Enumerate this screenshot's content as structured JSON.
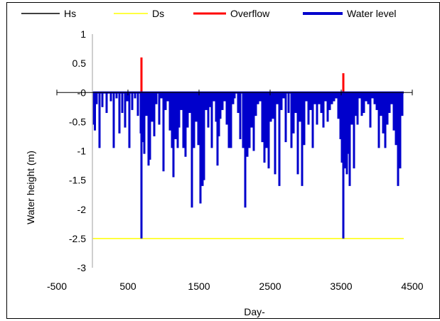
{
  "chart_data": {
    "type": "line",
    "title": "",
    "xlabel": "Day-",
    "ylabel": "Water height (m)",
    "xlim": [
      -500,
      4500
    ],
    "ylim": [
      -3,
      1
    ],
    "x_ticks": [
      -500,
      500,
      1500,
      2500,
      3500,
      4500
    ],
    "x_tick_labels": [
      "-500",
      "500",
      "1500",
      "2500",
      "3500",
      "4500"
    ],
    "y_ticks": [
      1,
      0.5,
      0,
      -0.5,
      -1,
      -1.5,
      -2,
      -2.5,
      -3
    ],
    "y_tick_labels": [
      "1",
      "0.5",
      "0",
      "-0.5",
      "-1",
      "-1.5",
      "-2",
      "-2.5",
      "-3"
    ],
    "y_tick_label_zero_display": "-0",
    "grid": false,
    "legend_position": "top",
    "series": [
      {
        "name": "Hs",
        "color": "#000000",
        "points": [
          [
            0,
            0
          ],
          [
            4380,
            0
          ]
        ]
      },
      {
        "name": "Ds",
        "color": "#ffff00",
        "points": [
          [
            0,
            -2.5
          ],
          [
            4380,
            -2.5
          ]
        ]
      },
      {
        "name": "Overflow",
        "color": "#ff0000",
        "points": [
          [
            690,
            0
          ],
          [
            690,
            0.6
          ],
          [
            690,
            0
          ],
          [
            3530,
            0
          ],
          [
            3530,
            0.33
          ],
          [
            3530,
            0
          ]
        ]
      },
      {
        "name": "Water level",
        "color": "#0000cc",
        "dips": [
          [
            20,
            -0.55
          ],
          [
            35,
            -0.65
          ],
          [
            60,
            -0.2
          ],
          [
            100,
            -0.95
          ],
          [
            140,
            -0.25
          ],
          [
            200,
            -0.35
          ],
          [
            260,
            -0.15
          ],
          [
            300,
            -0.95
          ],
          [
            340,
            -0.1
          ],
          [
            380,
            -0.7
          ],
          [
            420,
            -0.35
          ],
          [
            460,
            -0.6
          ],
          [
            490,
            -0.15
          ],
          [
            520,
            -0.95
          ],
          [
            560,
            -0.3
          ],
          [
            600,
            -0.1
          ],
          [
            640,
            -0.4
          ],
          [
            680,
            -0.7
          ],
          [
            690,
            -2.5
          ],
          [
            710,
            -0.85
          ],
          [
            730,
            -1.05
          ],
          [
            760,
            -0.4
          ],
          [
            790,
            -1.25
          ],
          [
            810,
            -1.15
          ],
          [
            840,
            -0.5
          ],
          [
            870,
            -0.75
          ],
          [
            900,
            -0.2
          ],
          [
            940,
            -0.55
          ],
          [
            970,
            -0.1
          ],
          [
            1000,
            -1.35
          ],
          [
            1030,
            -0.3
          ],
          [
            1060,
            -0.15
          ],
          [
            1090,
            -0.65
          ],
          [
            1120,
            -0.95
          ],
          [
            1140,
            -1.45
          ],
          [
            1170,
            -0.8
          ],
          [
            1200,
            -0.95
          ],
          [
            1220,
            -0.6
          ],
          [
            1250,
            -0.3
          ],
          [
            1280,
            -0.95
          ],
          [
            1310,
            -1.1
          ],
          [
            1340,
            -0.6
          ],
          [
            1370,
            -0.35
          ],
          [
            1400,
            -1.97
          ],
          [
            1430,
            -0.95
          ],
          [
            1460,
            -0.5
          ],
          [
            1490,
            -0.9
          ],
          [
            1520,
            -1.9
          ],
          [
            1550,
            -1.6
          ],
          [
            1570,
            -1.5
          ],
          [
            1600,
            -0.3
          ],
          [
            1630,
            -0.6
          ],
          [
            1650,
            -0.25
          ],
          [
            1680,
            -0.95
          ],
          [
            1710,
            -0.15
          ],
          [
            1740,
            -0.5
          ],
          [
            1760,
            -1.25
          ],
          [
            1780,
            -0.75
          ],
          [
            1800,
            -0.45
          ],
          [
            1830,
            -0.3
          ],
          [
            1860,
            -0.15
          ],
          [
            1890,
            -0.55
          ],
          [
            1920,
            -0.95
          ],
          [
            1950,
            -0.95
          ],
          [
            1980,
            -0.2
          ],
          [
            2000,
            -0.1
          ],
          [
            2050,
            -0.35
          ],
          [
            2080,
            -0.8
          ],
          [
            2120,
            -0.95
          ],
          [
            2150,
            -1.97
          ],
          [
            2180,
            -1.1
          ],
          [
            2210,
            -0.95
          ],
          [
            2240,
            -0.6
          ],
          [
            2270,
            -1.0
          ],
          [
            2300,
            -0.4
          ],
          [
            2330,
            -0.2
          ],
          [
            2360,
            -0.15
          ],
          [
            2390,
            -0.85
          ],
          [
            2420,
            -1.2
          ],
          [
            2450,
            -0.95
          ],
          [
            2480,
            -1.3
          ],
          [
            2510,
            -0.5
          ],
          [
            2540,
            -0.45
          ],
          [
            2570,
            -1.4
          ],
          [
            2600,
            -0.2
          ],
          [
            2630,
            -1.6
          ],
          [
            2660,
            -0.3
          ],
          [
            2690,
            -0.1
          ],
          [
            2720,
            -0.85
          ],
          [
            2760,
            -0.35
          ],
          [
            2800,
            -0.95
          ],
          [
            2830,
            -0.7
          ],
          [
            2860,
            -0.35
          ],
          [
            2890,
            -1.4
          ],
          [
            2920,
            -0.5
          ],
          [
            2950,
            -1.6
          ],
          [
            2980,
            -0.9
          ],
          [
            3010,
            -0.15
          ],
          [
            3040,
            -0.55
          ],
          [
            3070,
            -0.3
          ],
          [
            3100,
            -0.95
          ],
          [
            3130,
            -0.2
          ],
          [
            3160,
            -0.55
          ],
          [
            3190,
            -0.2
          ],
          [
            3220,
            -0.35
          ],
          [
            3250,
            -0.6
          ],
          [
            3280,
            -0.15
          ],
          [
            3310,
            -0.5
          ],
          [
            3340,
            -0.3
          ],
          [
            3370,
            -0.2
          ],
          [
            3400,
            -0.15
          ],
          [
            3430,
            -0.1
          ],
          [
            3460,
            -0.45
          ],
          [
            3490,
            -0.8
          ],
          [
            3510,
            -1.2
          ],
          [
            3530,
            -2.5
          ],
          [
            3555,
            -1.3
          ],
          [
            3580,
            -1.4
          ],
          [
            3600,
            -1.05
          ],
          [
            3620,
            -1.6
          ],
          [
            3650,
            -0.55
          ],
          [
            3680,
            -1.3
          ],
          [
            3700,
            -0.4
          ],
          [
            3730,
            -0.55
          ],
          [
            3760,
            -0.1
          ],
          [
            3790,
            -0.4
          ],
          [
            3820,
            -0.35
          ],
          [
            3850,
            -0.15
          ],
          [
            3880,
            -0.2
          ],
          [
            3910,
            -0.6
          ],
          [
            3940,
            -0.1
          ],
          [
            3970,
            -0.2
          ],
          [
            4000,
            -0.3
          ],
          [
            4030,
            -0.95
          ],
          [
            4060,
            -0.4
          ],
          [
            4090,
            -0.7
          ],
          [
            4120,
            -0.95
          ],
          [
            4150,
            -0.55
          ],
          [
            4180,
            -0.35
          ],
          [
            4210,
            -0.2
          ],
          [
            4240,
            -0.65
          ],
          [
            4270,
            -0.9
          ],
          [
            4300,
            -1.6
          ],
          [
            4330,
            -1.3
          ],
          [
            4360,
            -0.4
          ]
        ]
      }
    ]
  }
}
